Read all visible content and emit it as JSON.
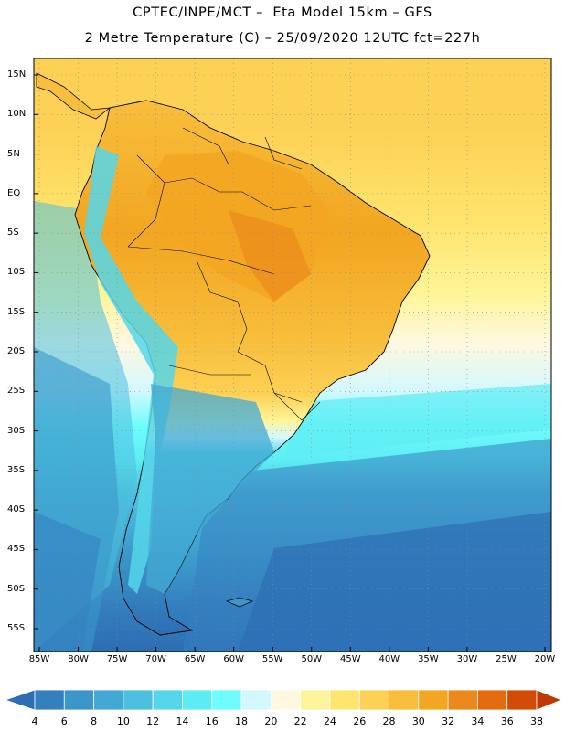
{
  "title": {
    "line1": "CPTEC/INPE/MCT –  Eta Model 15km – GFS",
    "line2": "2 Metre Temperature (C) – 25/09/2020 12UTC fct=227h"
  },
  "latitudes": [
    "15N",
    "10N",
    "5N",
    "EQ",
    "5S",
    "10S",
    "15S",
    "20S",
    "25S",
    "30S",
    "35S",
    "40S",
    "45S",
    "50S",
    "55S"
  ],
  "longitudes": [
    "85W",
    "80W",
    "75W",
    "70W",
    "65W",
    "60W",
    "55W",
    "50W",
    "45W",
    "40W",
    "35W",
    "30W",
    "25W",
    "20W"
  ],
  "colorbar": {
    "labels": [
      "4",
      "6",
      "8",
      "10",
      "12",
      "14",
      "16",
      "18",
      "20",
      "22",
      "24",
      "26",
      "28",
      "30",
      "32",
      "34",
      "36",
      "38"
    ],
    "colors": [
      "#2e6db3",
      "#3480bf",
      "#3b97c9",
      "#43a9d4",
      "#4cc0df",
      "#55d6ea",
      "#5cecf3",
      "#6ffcfc",
      "#d4f8ff",
      "#fff8e0",
      "#fef59a",
      "#fee56e",
      "#fdd155",
      "#f8be3c",
      "#f2a621",
      "#ea8a1d",
      "#e36c10",
      "#d24c06",
      "#bf3a02"
    ]
  },
  "map": {
    "region": "South America",
    "variable_colors": {
      "ocean_north": "#fdd155",
      "amazon_hot": "#f2a621",
      "andes_cool": "#55d6ea",
      "south_atlantic_cold": "#2e6db3"
    }
  }
}
